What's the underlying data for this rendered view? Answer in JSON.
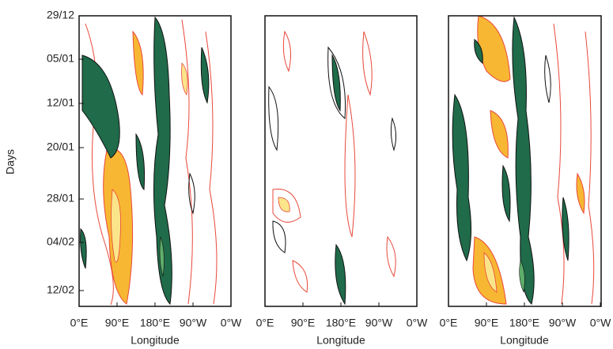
{
  "y_axis": {
    "title": "Days",
    "ticks": [
      "29/12",
      "05/01",
      "12/01",
      "20/01",
      "28/01",
      "04/02",
      "12/02"
    ]
  },
  "panels": [
    {
      "x_ticks": [
        "0°E",
        "90°E",
        "180°E",
        "90°W",
        "0°W"
      ],
      "x_title": "Longitude"
    },
    {
      "x_ticks": [
        "0°E",
        "90°E",
        "180°E",
        "90°W",
        "0°W"
      ],
      "x_title": "Longitude"
    },
    {
      "x_ticks": [
        "0°E",
        "90°E",
        "180°E",
        "90°W",
        "0°W"
      ],
      "x_title": "Longitude"
    }
  ]
}
